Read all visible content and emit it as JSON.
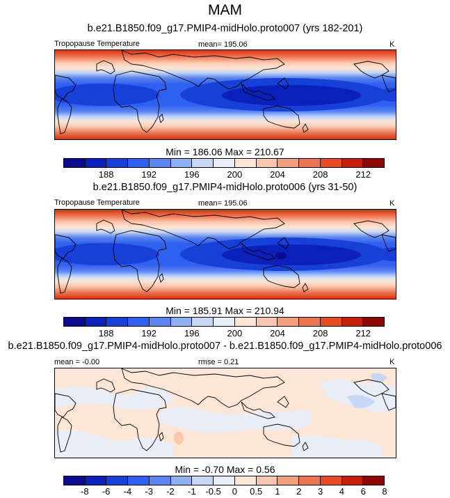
{
  "title": "MAM",
  "panels": [
    {
      "subtitle": "b.e21.B1850.f09_g17.PMIP4-midHolo.proto007 (yrs 182-201)",
      "left_label": "Tropopause Temperature",
      "center_label": "mean= 195.06",
      "right_label": "K",
      "minmax": "Min = 186.06 Max = 210.67",
      "type": "field"
    },
    {
      "subtitle": "b.e21.B1850.f09_g17.PMIP4-midHolo.proto006 (yrs 31-50)",
      "left_label": "Tropopause Temperature",
      "center_label": "mean= 195.06",
      "right_label": "K",
      "minmax": "Min = 185.91 Max = 210.94",
      "type": "field"
    },
    {
      "subtitle": "b.e21.B1850.f09_g17.PMIP4-midHolo.proto007 - b.e21.B1850.f09_g17.PMIP4-midHolo.proto006",
      "left_label": "mean =  -0.00",
      "center_label": "rmse =   0.21",
      "right_label": "K",
      "minmax": "Min =  -0.70 Max =   0.56",
      "type": "difference"
    }
  ],
  "colorbar_field": {
    "colors": [
      "#0a0a8c",
      "#0b20b8",
      "#1740d8",
      "#2f60f0",
      "#5a86f2",
      "#8fb0f2",
      "#c6d8f6",
      "#e8eef8",
      "#fde6d6",
      "#f9c7ae",
      "#f2a07c",
      "#ec7450",
      "#e84a22",
      "#c81e0c",
      "#8c0a04"
    ],
    "ticks": [
      "188",
      "192",
      "196",
      "200",
      "204",
      "208",
      "212"
    ]
  },
  "colorbar_diff": {
    "colors": [
      "#0a0a8c",
      "#0b20b8",
      "#1740d8",
      "#2f60f0",
      "#5a86f2",
      "#8fb0f2",
      "#c6d8f6",
      "#e8eef8",
      "#fde6d6",
      "#f9c7ae",
      "#f2a07c",
      "#ec7450",
      "#e84a22",
      "#c81e0c",
      "#8c0a04"
    ],
    "ticks": [
      "-8",
      "-6",
      "-4",
      "-3",
      "-2",
      "-1",
      "-0.5",
      "0",
      "0.5",
      "1",
      "2",
      "3",
      "4",
      "6",
      "8"
    ]
  }
}
